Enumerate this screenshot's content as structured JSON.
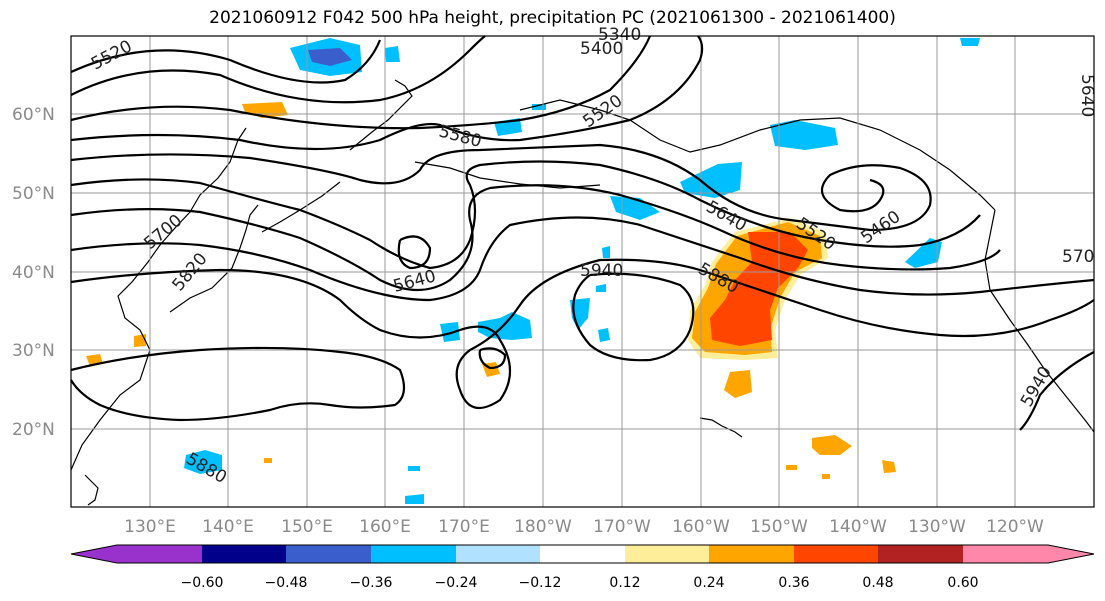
{
  "title": "2021060912 F042 500 hPa height, precipitation PC (2021061300 - 2021061400)",
  "map": {
    "lat_labels": [
      "60°N",
      "50°N",
      "40°N",
      "30°N",
      "20°N"
    ],
    "lon_labels": [
      "130°E",
      "140°E",
      "150°E",
      "160°E",
      "170°E",
      "180°W",
      "170°W",
      "160°W",
      "150°W",
      "140°W",
      "130°W",
      "120°W"
    ],
    "contour_labels": [
      "5520",
      "5400",
      "5340",
      "5520",
      "5580",
      "5640",
      "5520",
      "5460",
      "5700",
      "5820",
      "5640",
      "5940",
      "5880",
      "5880",
      "5940",
      "5640",
      "570"
    ]
  },
  "colorbar": {
    "ticks": [
      "−0.60",
      "−0.48",
      "−0.36",
      "−0.24",
      "−0.12",
      "0.12",
      "0.24",
      "0.36",
      "0.48",
      "0.60"
    ],
    "colors": [
      "#9932cc",
      "#00008b",
      "#3a5fcd",
      "#00bfff",
      "#b0e2ff",
      "#ffffff",
      "#ffee99",
      "#ffa500",
      "#ff4500",
      "#b22222",
      "#ff88aa"
    ]
  }
}
